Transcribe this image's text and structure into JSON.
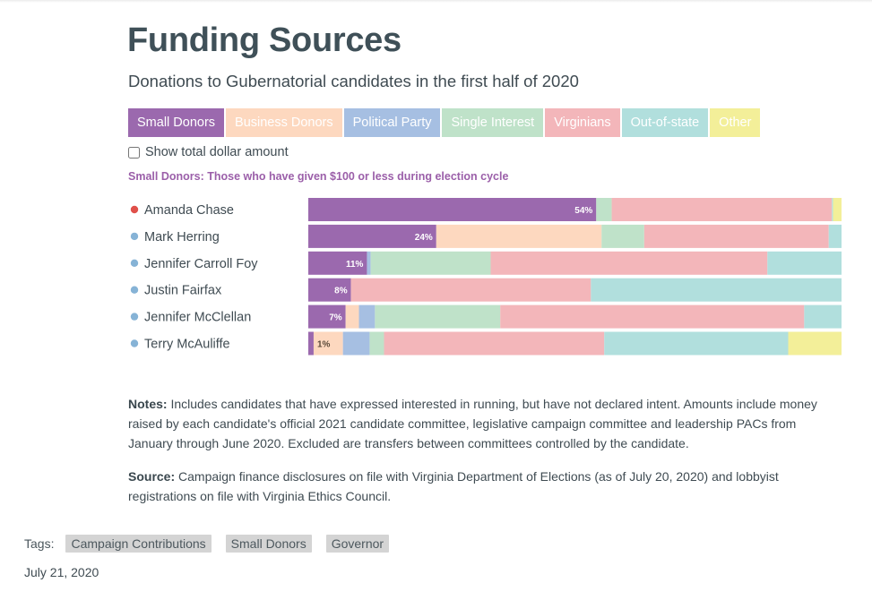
{
  "page": {
    "title": "Funding Sources",
    "subtitle": "Donations to Gubernatorial candidates in the first half of 2020",
    "toggle_label": "Show total dollar amount",
    "active_description": "Small Donors: Those who have given $100 or less during election cycle",
    "notes_label": "Notes:",
    "notes_text": " Includes candidates that have expressed interested in running, but have not declared intent. Amounts include money raised by each candidate's official 2021 candidate committee, legislative campaign committee and leadership PACs from January through June 2020. Excluded are transfers between committees controlled by the candidate.",
    "source_label": "Source:",
    "source_text": " Campaign finance disclosures on file with Virginia Department of Elections (as of July 20, 2020) and lobbyist registrations on file with Virginia Ethics Council.",
    "tags_label": "Tags:",
    "tags": [
      "Campaign Contributions",
      "Small Donors",
      "Governor"
    ],
    "date": "July 21, 2020"
  },
  "tabs": [
    {
      "label": "Small Donors",
      "color": "#9b69ae",
      "active": true
    },
    {
      "label": "Business Donors",
      "color": "#fdd8bf",
      "active": false
    },
    {
      "label": "Political Party",
      "color": "#a6bfe2",
      "active": false
    },
    {
      "label": "Single Interest",
      "color": "#bfe2c9",
      "active": false
    },
    {
      "label": "Virginians",
      "color": "#f3b6ba",
      "active": false
    },
    {
      "label": "Out-of-state",
      "color": "#b1dfdd",
      "active": false
    },
    {
      "label": "Other",
      "color": "#f3ef99",
      "active": false
    }
  ],
  "party_colors": {
    "R": "#e0504a",
    "D": "#86b3d6"
  },
  "chart_data": {
    "type": "bar",
    "stacked": true,
    "orientation": "horizontal",
    "unit": "percent",
    "categories": [
      "Amanda Chase",
      "Mark Herring",
      "Jennifer Carroll Foy",
      "Justin Fairfax",
      "Jennifer McClellan",
      "Terry McAuliffe"
    ],
    "party": [
      "R",
      "D",
      "D",
      "D",
      "D",
      "D"
    ],
    "series": [
      {
        "name": "Small Donors",
        "color": "#9b69ae",
        "values": [
          54,
          24,
          11,
          8,
          7,
          1
        ]
      },
      {
        "name": "Business Donors",
        "color": "#fdd8bf",
        "values": [
          0,
          31,
          0,
          0,
          2.5,
          5.5
        ]
      },
      {
        "name": "Political Party",
        "color": "#a6bfe2",
        "values": [
          0,
          0,
          0.7,
          0,
          3,
          5
        ]
      },
      {
        "name": "Single Interest",
        "color": "#bfe2c9",
        "values": [
          2.9,
          8,
          22.5,
          0,
          23.5,
          2.7
        ]
      },
      {
        "name": "Virginians",
        "color": "#f3b6ba",
        "values": [
          41.3,
          34.6,
          51.9,
          45,
          57,
          41.3
        ]
      },
      {
        "name": "Out-of-state",
        "color": "#b1dfdd",
        "values": [
          0.2,
          2.4,
          13.9,
          47,
          7,
          34.5
        ]
      },
      {
        "name": "Other",
        "color": "#f3ef99",
        "values": [
          1.6,
          0,
          0,
          0,
          0,
          10
        ]
      }
    ],
    "data_labels": [
      "54%",
      "24%",
      "11%",
      "8%",
      "7%",
      "1%"
    ],
    "xlim": [
      0,
      100
    ]
  }
}
